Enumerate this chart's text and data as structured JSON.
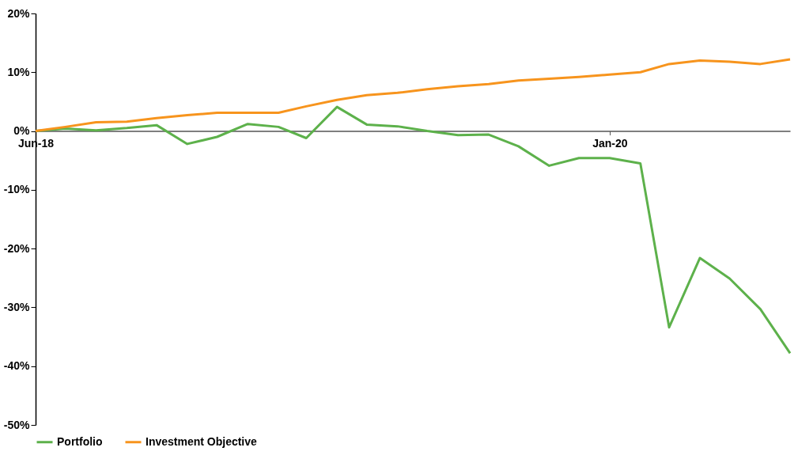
{
  "chart_data": {
    "type": "line",
    "x": [
      "2018-06",
      "2018-07",
      "2018-08",
      "2018-09",
      "2018-10",
      "2018-11",
      "2018-12",
      "2019-01",
      "2019-02",
      "2019-03",
      "2019-04",
      "2019-05",
      "2019-06",
      "2019-07",
      "2019-08",
      "2019-09",
      "2019-10",
      "2019-11",
      "2019-12",
      "2020-01",
      "2020-02",
      "2020-03",
      "2020-04",
      "2020-05",
      "2020-06",
      "2020-07"
    ],
    "series": [
      {
        "name": "Portfolio",
        "color": "#5db14b",
        "values": [
          0,
          0.4,
          0.1,
          0.5,
          1.0,
          -2.2,
          -1.0,
          1.2,
          0.7,
          -1.2,
          4.1,
          1.1,
          0.8,
          0,
          -0.7,
          -0.6,
          -2.6,
          -5.9,
          -4.6,
          -4.6,
          -5.5,
          -33.4,
          -21.6,
          -25.1,
          -30.3,
          -37.8
        ]
      },
      {
        "name": "Investment Objective",
        "color": "#f7941d",
        "values": [
          0,
          0.7,
          1.5,
          1.6,
          2.2,
          2.7,
          3.1,
          3.1,
          3.1,
          4.2,
          5.3,
          6.1,
          6.5,
          7.1,
          7.6,
          8.0,
          8.6,
          8.9,
          9.2,
          9.6,
          10.0,
          11.4,
          12.0,
          11.8,
          11.4,
          12.2
        ]
      }
    ],
    "xlim": [
      "2018-06",
      "2020-07"
    ],
    "xticks": [
      {
        "value": "2018-06",
        "label": "Jun-18"
      },
      {
        "value": "2020-01",
        "label": "Jan-20"
      }
    ],
    "ylim": [
      -50,
      20
    ],
    "yticks": [
      {
        "value": -50,
        "label": "-50%"
      },
      {
        "value": -40,
        "label": "-40%"
      },
      {
        "value": -30,
        "label": "-30%"
      },
      {
        "value": -20,
        "label": "-20%"
      },
      {
        "value": -10,
        "label": "-10%"
      },
      {
        "value": 0,
        "label": "0%"
      },
      {
        "value": 10,
        "label": "10%"
      },
      {
        "value": 20,
        "label": "20%"
      }
    ],
    "grid": false,
    "legend": "bottom"
  }
}
